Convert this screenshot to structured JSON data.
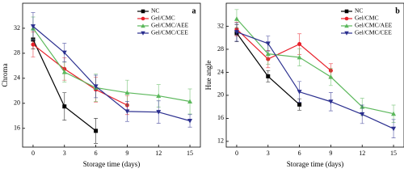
{
  "chart_data": [
    {
      "type": "line",
      "panel": "a",
      "xlabel": "Storage time (days)",
      "ylabel": "Chroma",
      "x": [
        0,
        3,
        6,
        9,
        12,
        15
      ],
      "xlim": [
        -1,
        16
      ],
      "xticks": [
        0,
        3,
        6,
        9,
        12,
        15
      ],
      "ylim": [
        13,
        36
      ],
      "yticks": [
        16,
        20,
        24,
        28,
        32
      ],
      "legend": "upper right",
      "series": [
        {
          "name": "NC",
          "color": "#000000",
          "marker": "square",
          "values": [
            30.2,
            19.5,
            15.6,
            null,
            null,
            null
          ],
          "errors": [
            1.5,
            2.2,
            2.0,
            null,
            null,
            null
          ]
        },
        {
          "name": "Gel/CMC",
          "color": "#e8202a",
          "marker": "circle",
          "values": [
            29.4,
            25.5,
            22.2,
            19.7,
            null,
            null
          ],
          "errors": [
            2.0,
            1.8,
            2.0,
            1.5,
            null,
            null
          ]
        },
        {
          "name": "Gel/CMC/AEE",
          "color": "#5cb85c",
          "marker": "triangle-up",
          "values": [
            32.0,
            25.0,
            22.5,
            21.7,
            21.2,
            20.3
          ],
          "errors": [
            1.8,
            1.6,
            2.2,
            2.0,
            1.8,
            2.0
          ]
        },
        {
          "name": "Gel/CMC/CEE",
          "color": "#2b2f8f",
          "marker": "triangle-down",
          "values": [
            32.3,
            28.1,
            22.7,
            18.7,
            18.6,
            17.2
          ],
          "errors": [
            2.2,
            1.5,
            1.8,
            1.6,
            1.8,
            1.0
          ]
        }
      ]
    },
    {
      "type": "line",
      "panel": "b",
      "xlabel": "Storage time (days)",
      "ylabel": "Hue angle",
      "x": [
        0,
        3,
        6,
        9,
        12,
        15
      ],
      "xlim": [
        -1,
        16
      ],
      "xticks": [
        0,
        3,
        6,
        9,
        12,
        15
      ],
      "ylim": [
        11,
        36
      ],
      "yticks": [
        12,
        16,
        20,
        24,
        28,
        32
      ],
      "legend": "upper right",
      "series": [
        {
          "name": "NC",
          "color": "#000000",
          "marker": "square",
          "values": [
            30.8,
            23.3,
            18.4,
            null,
            null,
            null
          ],
          "errors": [
            1.5,
            1.0,
            1.0,
            null,
            null,
            null
          ]
        },
        {
          "name": "Gel/CMC",
          "color": "#e8202a",
          "marker": "circle",
          "values": [
            31.5,
            26.3,
            28.9,
            24.3,
            null,
            null
          ],
          "errors": [
            1.2,
            1.5,
            1.8,
            1.2,
            null,
            null
          ]
        },
        {
          "name": "Gel/CMC/AEE",
          "color": "#5cb85c",
          "marker": "triangle-up",
          "values": [
            33.3,
            27.2,
            26.6,
            23.2,
            18.0,
            16.8
          ],
          "errors": [
            1.6,
            1.8,
            1.5,
            1.5,
            1.5,
            1.5
          ]
        },
        {
          "name": "Gel/CMC/CEE",
          "color": "#2b2f8f",
          "marker": "triangle-down",
          "values": [
            31.0,
            29.0,
            20.6,
            18.9,
            16.7,
            14.2
          ],
          "errors": [
            1.6,
            1.3,
            1.8,
            1.6,
            1.6,
            1.6
          ]
        }
      ]
    }
  ]
}
